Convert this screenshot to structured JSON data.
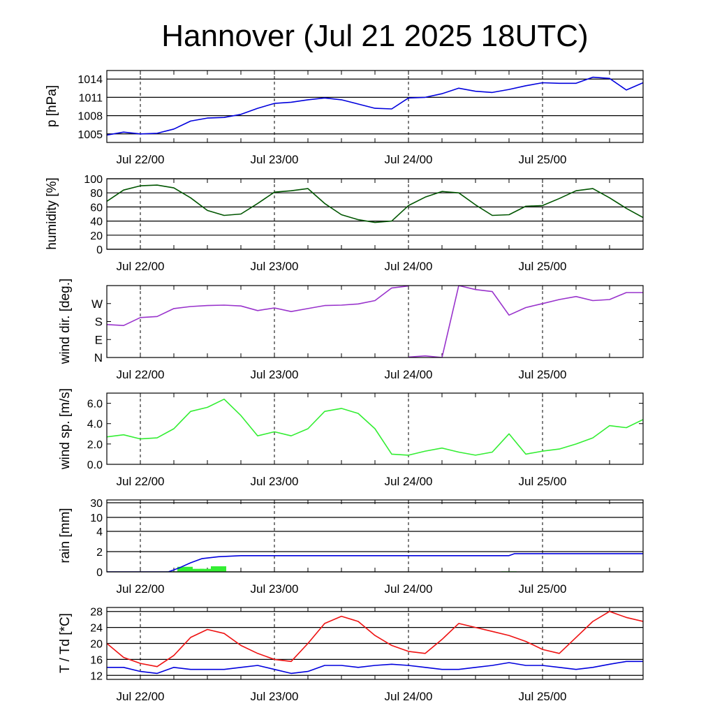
{
  "title": "Hannover (Jul 21 2025 18UTC)",
  "x_axis": {
    "start": "2025-07-21 18:00",
    "end": "2025-07-25 18:00",
    "date_ticks": [
      "Jul 22/00",
      "Jul 23/00",
      "Jul 24/00",
      "Jul 25/00"
    ],
    "date_tick_times": [
      "2025-07-22 00:00",
      "2025-07-23 00:00",
      "2025-07-24 00:00",
      "2025-07-25 00:00"
    ],
    "minor_tick_every_hours": 6
  },
  "chart_data": [
    {
      "type": "line",
      "panel": "pressure",
      "ylabel": "p [hPa]",
      "ylim": [
        1003.6,
        1015.4
      ],
      "yticks": [
        1005,
        1008,
        1011,
        1014
      ],
      "ytick_labels": [
        "1005",
        "1008",
        "1011",
        "1014"
      ],
      "grid": true,
      "series": [
        {
          "color": "#0000dd",
          "x": [
            "2025-07-21 18:00",
            "2025-07-21 21:00",
            "2025-07-22 00:00",
            "2025-07-22 03:00",
            "2025-07-22 06:00",
            "2025-07-22 09:00",
            "2025-07-22 12:00",
            "2025-07-22 15:00",
            "2025-07-22 18:00",
            "2025-07-22 21:00",
            "2025-07-23 00:00",
            "2025-07-23 03:00",
            "2025-07-23 06:00",
            "2025-07-23 09:00",
            "2025-07-23 12:00",
            "2025-07-23 15:00",
            "2025-07-23 18:00",
            "2025-07-23 21:00",
            "2025-07-24 00:00",
            "2025-07-24 03:00",
            "2025-07-24 06:00",
            "2025-07-24 09:00",
            "2025-07-24 12:00",
            "2025-07-24 15:00",
            "2025-07-24 18:00",
            "2025-07-24 21:00",
            "2025-07-25 00:00",
            "2025-07-25 03:00",
            "2025-07-25 06:00",
            "2025-07-25 09:00",
            "2025-07-25 12:00",
            "2025-07-25 15:00",
            "2025-07-25 18:00"
          ],
          "y": [
            1004.8,
            1005.3,
            1005.0,
            1005.1,
            1005.8,
            1007.1,
            1007.6,
            1007.7,
            1008.2,
            1009.2,
            1010.0,
            1010.2,
            1010.6,
            1010.9,
            1010.6,
            1009.9,
            1009.2,
            1009.1,
            1010.9,
            1011.0,
            1011.6,
            1012.5,
            1012.0,
            1011.8,
            1012.3,
            1012.9,
            1013.4,
            1013.3,
            1013.3,
            1014.3,
            1014.1,
            1012.2,
            1013.4
          ]
        }
      ]
    },
    {
      "type": "line",
      "panel": "humidity",
      "ylabel": "humidity [%]",
      "ylim": [
        0,
        100
      ],
      "yticks": [
        0,
        20,
        40,
        60,
        80,
        100
      ],
      "ytick_labels": [
        "0",
        "20",
        "40",
        "60",
        "80",
        "100"
      ],
      "grid": true,
      "series": [
        {
          "color": "#005500",
          "x": [
            "2025-07-21 18:00",
            "2025-07-21 21:00",
            "2025-07-22 00:00",
            "2025-07-22 03:00",
            "2025-07-22 06:00",
            "2025-07-22 09:00",
            "2025-07-22 12:00",
            "2025-07-22 15:00",
            "2025-07-22 18:00",
            "2025-07-22 21:00",
            "2025-07-23 00:00",
            "2025-07-23 03:00",
            "2025-07-23 06:00",
            "2025-07-23 09:00",
            "2025-07-23 12:00",
            "2025-07-23 15:00",
            "2025-07-23 18:00",
            "2025-07-23 21:00",
            "2025-07-24 00:00",
            "2025-07-24 03:00",
            "2025-07-24 06:00",
            "2025-07-24 09:00",
            "2025-07-24 12:00",
            "2025-07-24 15:00",
            "2025-07-24 18:00",
            "2025-07-24 21:00",
            "2025-07-25 00:00",
            "2025-07-25 03:00",
            "2025-07-25 06:00",
            "2025-07-25 09:00",
            "2025-07-25 12:00",
            "2025-07-25 15:00",
            "2025-07-25 18:00"
          ],
          "y": [
            68,
            84,
            90,
            91,
            87,
            73,
            55,
            48,
            50,
            65,
            81,
            83,
            86,
            65,
            49,
            42,
            38,
            40,
            62,
            74,
            82,
            80,
            63,
            48,
            49,
            61,
            62,
            72,
            83,
            86,
            73,
            58,
            45
          ]
        }
      ]
    },
    {
      "type": "line",
      "panel": "wind_direction",
      "ylabel": "wind dir. [deg.]",
      "ylim": [
        0,
        360
      ],
      "yticks": [
        0,
        90,
        180,
        270
      ],
      "ytick_labels": [
        "N",
        "E",
        "S",
        "W"
      ],
      "grid": false,
      "series": [
        {
          "color": "#9933cc",
          "x": [
            "2025-07-21 18:00",
            "2025-07-21 21:00",
            "2025-07-22 00:00",
            "2025-07-22 03:00",
            "2025-07-22 06:00",
            "2025-07-22 09:00",
            "2025-07-22 12:00",
            "2025-07-22 15:00",
            "2025-07-22 18:00",
            "2025-07-22 21:00",
            "2025-07-23 00:00",
            "2025-07-23 03:00",
            "2025-07-23 06:00",
            "2025-07-23 09:00",
            "2025-07-23 12:00",
            "2025-07-23 15:00",
            "2025-07-23 18:00",
            "2025-07-23 21:00",
            "2025-07-24 00:00"
          ],
          "y": [
            165,
            160,
            200,
            205,
            245,
            255,
            260,
            262,
            258,
            235,
            248,
            230,
            245,
            260,
            262,
            268,
            285,
            348,
            358
          ]
        },
        {
          "color": "#9933cc",
          "x": [
            "2025-07-24 00:00",
            "2025-07-24 03:00",
            "2025-07-24 06:00",
            "2025-07-24 09:00",
            "2025-07-24 12:00",
            "2025-07-24 15:00",
            "2025-07-24 18:00",
            "2025-07-24 21:00",
            "2025-07-25 00:00",
            "2025-07-25 03:00",
            "2025-07-25 06:00",
            "2025-07-25 09:00",
            "2025-07-25 12:00",
            "2025-07-25 15:00",
            "2025-07-25 18:00"
          ],
          "y": [
            2,
            8,
            0,
            360,
            340,
            330,
            212,
            250,
            270,
            290,
            305,
            285,
            290,
            325,
            325
          ]
        }
      ]
    },
    {
      "type": "line",
      "panel": "wind_speed",
      "ylabel": "wind sp. [m/s]",
      "ylim": [
        0,
        7
      ],
      "yticks": [
        0,
        2,
        4,
        6
      ],
      "ytick_labels": [
        "0.0",
        "2.0",
        "4.0",
        "6.0"
      ],
      "grid": false,
      "series": [
        {
          "color": "#33ee33",
          "x": [
            "2025-07-21 18:00",
            "2025-07-21 21:00",
            "2025-07-22 00:00",
            "2025-07-22 03:00",
            "2025-07-22 06:00",
            "2025-07-22 09:00",
            "2025-07-22 12:00",
            "2025-07-22 15:00",
            "2025-07-22 18:00",
            "2025-07-22 21:00",
            "2025-07-23 00:00",
            "2025-07-23 03:00",
            "2025-07-23 06:00",
            "2025-07-23 09:00",
            "2025-07-23 12:00",
            "2025-07-23 15:00",
            "2025-07-23 18:00",
            "2025-07-23 21:00",
            "2025-07-24 00:00",
            "2025-07-24 03:00",
            "2025-07-24 06:00",
            "2025-07-24 09:00",
            "2025-07-24 12:00",
            "2025-07-24 15:00",
            "2025-07-24 18:00",
            "2025-07-24 21:00",
            "2025-07-25 00:00",
            "2025-07-25 03:00",
            "2025-07-25 06:00",
            "2025-07-25 09:00",
            "2025-07-25 12:00",
            "2025-07-25 15:00",
            "2025-07-25 18:00"
          ],
          "y": [
            2.7,
            2.9,
            2.5,
            2.6,
            3.5,
            5.2,
            5.6,
            6.4,
            4.8,
            2.8,
            3.2,
            2.8,
            3.5,
            5.2,
            5.5,
            5.0,
            3.5,
            1.0,
            0.9,
            1.3,
            1.6,
            1.2,
            0.9,
            1.2,
            3.0,
            1.0,
            1.3,
            1.5,
            2.0,
            2.6,
            3.8,
            3.6,
            4.4
          ]
        }
      ]
    },
    {
      "type": "bar+line",
      "panel": "rain",
      "ylabel": "rain [mm]",
      "yticks": [
        0,
        2,
        4,
        10,
        30
      ],
      "ytick_labels": [
        "0",
        "2",
        "4",
        "10",
        "30"
      ],
      "grid": true,
      "cumulative": {
        "color": "#0000dd",
        "x": [
          "2025-07-21 18:00",
          "2025-07-22 05:00",
          "2025-07-22 06:00",
          "2025-07-22 07:00",
          "2025-07-22 09:00",
          "2025-07-22 11:00",
          "2025-07-22 14:00",
          "2025-07-22 18:00",
          "2025-07-24 00:00",
          "2025-07-24 18:00",
          "2025-07-24 19:00",
          "2025-07-25 18:00"
        ],
        "y": [
          0,
          0,
          0.2,
          0.4,
          0.9,
          1.3,
          1.5,
          1.6,
          1.6,
          1.6,
          1.8,
          1.8
        ]
      },
      "bars": {
        "color": "#33ee33",
        "x": [
          "2025-07-22 06:00",
          "2025-07-22 08:00",
          "2025-07-22 10:00",
          "2025-07-22 12:00",
          "2025-07-22 14:00",
          "2025-07-24 18:00"
        ],
        "values": [
          0.05,
          0.5,
          0.3,
          0.3,
          0.55,
          0.05
        ]
      }
    },
    {
      "type": "line",
      "panel": "temperature",
      "ylabel": "T / Td [*C]",
      "ylim": [
        11,
        29
      ],
      "yticks": [
        12,
        16,
        20,
        24,
        28
      ],
      "ytick_labels": [
        "12",
        "16",
        "20",
        "24",
        "28"
      ],
      "grid": true,
      "series": [
        {
          "color": "#ee1111",
          "x": [
            "2025-07-21 18:00",
            "2025-07-21 21:00",
            "2025-07-22 00:00",
            "2025-07-22 03:00",
            "2025-07-22 06:00",
            "2025-07-22 09:00",
            "2025-07-22 12:00",
            "2025-07-22 15:00",
            "2025-07-22 18:00",
            "2025-07-22 21:00",
            "2025-07-23 00:00",
            "2025-07-23 03:00",
            "2025-07-23 06:00",
            "2025-07-23 09:00",
            "2025-07-23 12:00",
            "2025-07-23 15:00",
            "2025-07-23 18:00",
            "2025-07-23 21:00",
            "2025-07-24 00:00",
            "2025-07-24 03:00",
            "2025-07-24 06:00",
            "2025-07-24 09:00",
            "2025-07-24 12:00",
            "2025-07-24 15:00",
            "2025-07-24 18:00",
            "2025-07-24 21:00",
            "2025-07-25 00:00",
            "2025-07-25 03:00",
            "2025-07-25 06:00",
            "2025-07-25 09:00",
            "2025-07-25 12:00",
            "2025-07-25 15:00",
            "2025-07-25 18:00"
          ],
          "y": [
            20,
            16.5,
            15,
            14.2,
            17,
            21.5,
            23.5,
            22.5,
            19.5,
            17.5,
            16,
            15.5,
            20,
            25,
            26.8,
            25.5,
            22,
            19.5,
            18,
            17.5,
            21,
            25,
            24,
            23,
            22,
            20.5,
            18.5,
            17.5,
            21.5,
            25.5,
            28,
            26.5,
            25.5
          ]
        },
        {
          "color": "#0000dd",
          "x": [
            "2025-07-21 18:00",
            "2025-07-21 21:00",
            "2025-07-22 00:00",
            "2025-07-22 03:00",
            "2025-07-22 06:00",
            "2025-07-22 09:00",
            "2025-07-22 12:00",
            "2025-07-22 15:00",
            "2025-07-22 18:00",
            "2025-07-22 21:00",
            "2025-07-23 00:00",
            "2025-07-23 03:00",
            "2025-07-23 06:00",
            "2025-07-23 09:00",
            "2025-07-23 12:00",
            "2025-07-23 15:00",
            "2025-07-23 18:00",
            "2025-07-23 21:00",
            "2025-07-24 00:00",
            "2025-07-24 03:00",
            "2025-07-24 06:00",
            "2025-07-24 09:00",
            "2025-07-24 12:00",
            "2025-07-24 15:00",
            "2025-07-24 18:00",
            "2025-07-24 21:00",
            "2025-07-25 00:00",
            "2025-07-25 03:00",
            "2025-07-25 06:00",
            "2025-07-25 09:00",
            "2025-07-25 12:00",
            "2025-07-25 15:00",
            "2025-07-25 18:00"
          ],
          "y": [
            14,
            14,
            13,
            12.5,
            14,
            13.5,
            13.5,
            13.5,
            14,
            14.5,
            13.5,
            12.5,
            13,
            14.5,
            14.5,
            14,
            14.5,
            14.8,
            14.5,
            14,
            13.5,
            13.5,
            14,
            14.5,
            15.2,
            14.5,
            14.5,
            14,
            13.5,
            14,
            14.8,
            15.5,
            15.5
          ]
        }
      ]
    }
  ]
}
